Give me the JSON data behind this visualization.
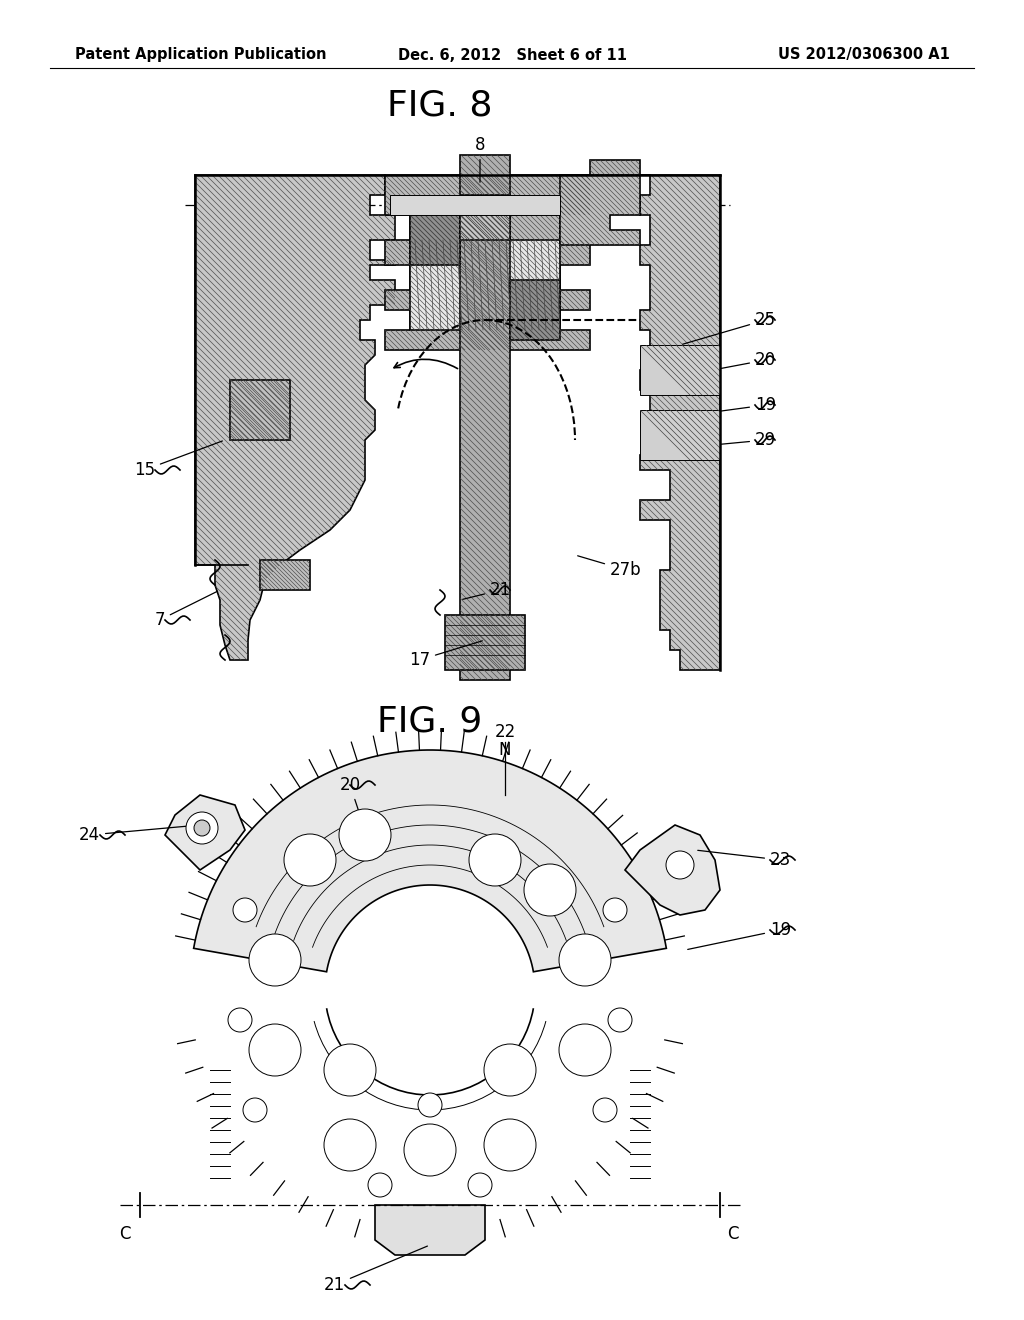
{
  "bg_color": "#ffffff",
  "header_left": "Patent Application Publication",
  "header_center": "Dec. 6, 2012   Sheet 6 of 11",
  "header_right": "US 2012/0306300 A1",
  "fig8_title": "FIG. 8",
  "fig9_title": "FIG. 9",
  "header_fontsize": 10.5,
  "fig_title_fontsize": 26,
  "label_fontsize": 12
}
